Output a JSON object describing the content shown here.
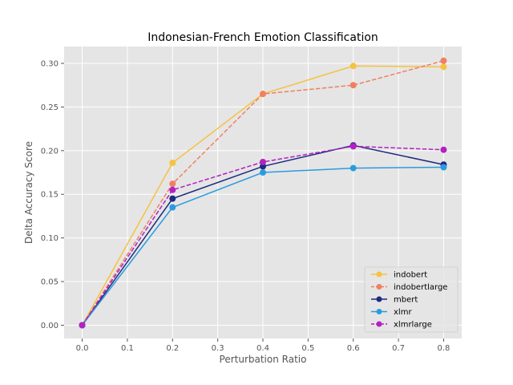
{
  "chart_data": {
    "type": "line",
    "title": "Indonesian-French Emotion Classification",
    "xlabel": "Perturbation Ratio",
    "ylabel": "Delta Accuracy Score",
    "x": [
      0.0,
      0.2,
      0.4,
      0.6,
      0.8
    ],
    "xlim": [
      -0.04,
      0.84
    ],
    "ylim": [
      -0.0152,
      0.3193
    ],
    "xticks": [
      0.0,
      0.1,
      0.2,
      0.3,
      0.4,
      0.5,
      0.6,
      0.7,
      0.8
    ],
    "xtick_labels": [
      "0.0",
      "0.1",
      "0.2",
      "0.3",
      "0.4",
      "0.5",
      "0.6",
      "0.7",
      "0.8"
    ],
    "yticks": [
      0.0,
      0.05,
      0.1,
      0.15,
      0.2,
      0.25,
      0.3
    ],
    "ytick_labels": [
      "0.00",
      "0.05",
      "0.10",
      "0.15",
      "0.20",
      "0.25",
      "0.30"
    ],
    "grid": true,
    "background": "#e5e5e5",
    "legend_position": "lower-right",
    "series": [
      {
        "name": "indobert",
        "values": [
          0.0,
          0.186,
          0.265,
          0.297,
          0.296
        ],
        "color": "#f5c242",
        "dashed": false
      },
      {
        "name": "indobertlarge",
        "values": [
          0.0,
          0.162,
          0.265,
          0.275,
          0.303
        ],
        "color": "#f08060",
        "dashed": true
      },
      {
        "name": "mbert",
        "values": [
          0.0,
          0.145,
          0.182,
          0.206,
          0.184
        ],
        "color": "#1c2a80",
        "dashed": false
      },
      {
        "name": "xlmr",
        "values": [
          0.0,
          0.135,
          0.175,
          0.18,
          0.181
        ],
        "color": "#2b9be0",
        "dashed": false
      },
      {
        "name": "xlmrlarge",
        "values": [
          0.0,
          0.155,
          0.187,
          0.205,
          0.201
        ],
        "color": "#b321c2",
        "dashed": true
      }
    ]
  }
}
